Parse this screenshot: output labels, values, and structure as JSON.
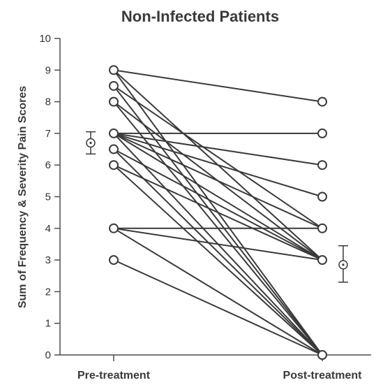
{
  "chart_data": {
    "type": "line",
    "title": "Non-Infected Patients",
    "xlabel": "",
    "ylabel": "Sum of Frequency & Severity Pain Scores",
    "categories": [
      "Pre-treatment",
      "Post-treatment"
    ],
    "ylim": [
      0,
      10
    ],
    "yticks": [
      "0",
      "1",
      "2",
      "3",
      "4",
      "5",
      "6",
      "7",
      "8",
      "9",
      "10"
    ],
    "grid": false,
    "legend": "none",
    "pairs": [
      [
        9,
        8
      ],
      [
        9,
        3
      ],
      [
        9,
        0
      ],
      [
        8.5,
        4
      ],
      [
        8.5,
        0
      ],
      [
        8,
        3
      ],
      [
        8,
        0
      ],
      [
        7,
        7
      ],
      [
        7,
        6
      ],
      [
        7,
        5
      ],
      [
        7,
        4
      ],
      [
        7,
        3
      ],
      [
        7,
        0
      ],
      [
        6.5,
        3
      ],
      [
        6.5,
        0
      ],
      [
        6,
        3
      ],
      [
        6,
        0
      ],
      [
        4,
        4
      ],
      [
        4,
        3
      ],
      [
        4,
        0
      ],
      [
        3,
        0
      ]
    ],
    "summary": {
      "pre": {
        "mean": 6.7,
        "low": 6.35,
        "high": 7.05
      },
      "post": {
        "mean": 2.85,
        "low": 2.3,
        "high": 3.45
      }
    }
  },
  "colors": {
    "line": "#3a3a3a",
    "axis": "#4d4d4d",
    "marker_fill": "#ffffff"
  }
}
